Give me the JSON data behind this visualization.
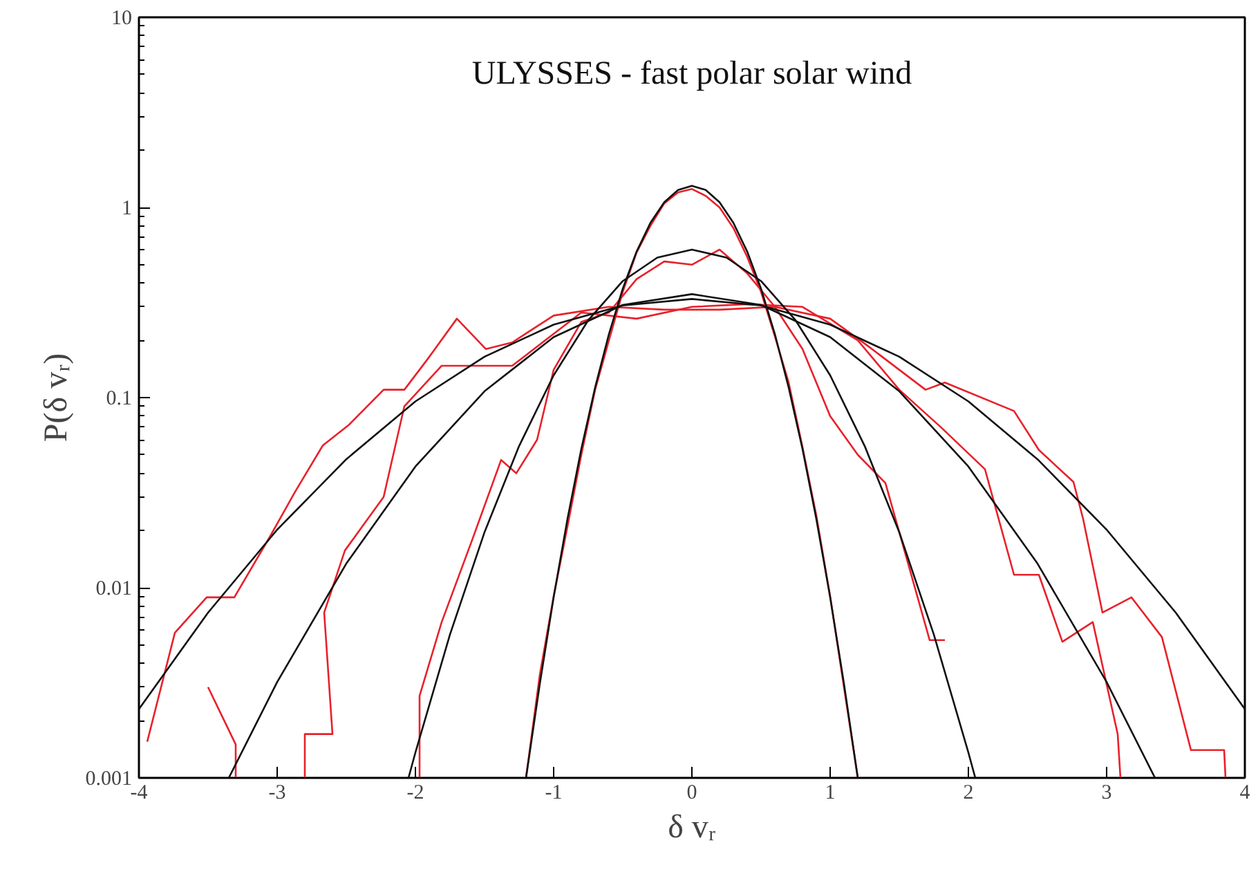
{
  "chart_data": {
    "type": "line",
    "title": "ULYSSES - fast polar solar wind",
    "xlabel": "δ vᵣ",
    "ylabel": "P(δ vᵣ)",
    "log": "y",
    "grid": false,
    "marker": "none",
    "line_style": "solid",
    "xlim": [
      -4,
      4
    ],
    "xticks": [
      -4,
      -3,
      -2,
      -1,
      0,
      1,
      2,
      3,
      4
    ],
    "ylim": [
      0.001,
      10
    ],
    "yticks": [
      {
        "value": 0.001,
        "label": "0.001"
      },
      {
        "value": 0.01,
        "label": "0.01"
      },
      {
        "value": 0.1,
        "label": "0.1"
      },
      {
        "value": 1,
        "label": "1"
      },
      {
        "value": 10,
        "label": "10"
      }
    ],
    "series": [
      {
        "color": "#e8212b",
        "x": [
          -1.2,
          -1.1,
          -1.0,
          -0.9,
          -0.8,
          -0.7,
          -0.6,
          -0.5,
          -0.4,
          -0.3,
          -0.2,
          -0.1,
          0,
          0.1,
          0.2,
          0.3,
          0.4,
          0.5,
          0.6,
          0.7,
          0.8,
          0.9,
          1.0,
          1.1,
          1.2
        ],
        "values": [
          0.001,
          0.0035,
          0.009,
          0.021,
          0.05,
          0.11,
          0.2,
          0.36,
          0.58,
          0.8,
          1.05,
          1.2,
          1.25,
          1.15,
          1.0,
          0.78,
          0.55,
          0.36,
          0.21,
          0.12,
          0.055,
          0.024,
          0.009,
          0.003,
          0.001
        ]
      },
      {
        "color": "#e8212b",
        "x": [
          -1.97,
          -1.97,
          -1.81,
          -1.59,
          -1.38,
          -1.27,
          -1.12,
          -1.0,
          -0.8,
          -0.6,
          -0.4,
          -0.2,
          0,
          0.2,
          0.4,
          0.6,
          0.8,
          1.0,
          1.2,
          1.4,
          1.72,
          1.83
        ],
        "values": [
          0.001,
          0.0027,
          0.0066,
          0.0178,
          0.047,
          0.04,
          0.06,
          0.14,
          0.25,
          0.28,
          0.42,
          0.52,
          0.5,
          0.6,
          0.45,
          0.3,
          0.18,
          0.08,
          0.05,
          0.0355,
          0.0053,
          0.0053
        ]
      },
      {
        "color": "#e8212b",
        "x": [
          -3.5,
          -3.3,
          -3.3,
          -3.0,
          -2.8,
          -2.8,
          -2.6,
          -2.66,
          -2.51,
          -2.23,
          -2.08,
          -1.81,
          -1.3,
          -0.8,
          -0.4,
          0,
          0.4,
          0.8,
          1.2,
          1.5,
          1.8,
          2.12,
          2.33,
          2.51,
          2.68,
          2.9,
          3.08,
          3.1
        ],
        "values": [
          0.003,
          0.0015,
          0.001,
          null,
          0.001,
          0.0017,
          0.0017,
          0.0074,
          0.0157,
          0.03,
          0.09,
          0.147,
          0.147,
          0.28,
          0.26,
          0.3,
          0.31,
          0.3,
          0.2,
          0.11,
          0.07,
          0.042,
          0.0117,
          0.0117,
          0.0052,
          0.0066,
          0.0017,
          0.001
        ]
      },
      {
        "color": "#e8212b",
        "x": [
          -3.94,
          -3.74,
          -3.51,
          -3.31,
          -3.05,
          -2.87,
          -2.67,
          -2.48,
          -2.23,
          -2.08,
          -1.91,
          -1.7,
          -1.49,
          -1.3,
          -1.0,
          -0.6,
          -0.2,
          0.2,
          0.6,
          1.0,
          1.26,
          1.69,
          1.83,
          2.33,
          2.51,
          2.76,
          2.83,
          2.97,
          3.18,
          3.4,
          3.61,
          3.85,
          3.86
        ],
        "values": [
          0.00155,
          0.0058,
          0.0089,
          0.0089,
          0.0187,
          0.032,
          0.056,
          0.072,
          0.11,
          0.11,
          0.16,
          0.26,
          0.18,
          0.195,
          0.27,
          0.3,
          0.29,
          0.29,
          0.3,
          0.26,
          0.19,
          0.11,
          0.12,
          0.085,
          0.053,
          0.036,
          0.023,
          0.0074,
          0.0089,
          0.0055,
          0.0014,
          0.0014,
          0.001
        ]
      },
      {
        "color": "#111111",
        "x": [
          -1.2,
          -1.1,
          -1.0,
          -0.9,
          -0.8,
          -0.7,
          -0.6,
          -0.5,
          -0.4,
          -0.3,
          -0.2,
          -0.1,
          0,
          0.1,
          0.2,
          0.3,
          0.4,
          0.5,
          0.6,
          0.7,
          0.8,
          0.9,
          1.0,
          1.1,
          1.2
        ],
        "values": [
          0.001,
          0.00313,
          0.00893,
          0.023,
          0.0537,
          0.113,
          0.216,
          0.374,
          0.586,
          0.83,
          1.065,
          1.236,
          1.3,
          1.236,
          1.065,
          0.83,
          0.586,
          0.374,
          0.216,
          0.113,
          0.0537,
          0.023,
          0.00893,
          0.00313,
          0.001
        ]
      },
      {
        "color": "#111111",
        "x": [
          -2.05,
          -2.0,
          -1.75,
          -1.5,
          -1.25,
          -1.0,
          -0.75,
          -0.5,
          -0.25,
          0,
          0.25,
          0.5,
          0.75,
          1.0,
          1.25,
          1.5,
          1.75,
          2.0,
          2.05
        ],
        "values": [
          0.001,
          0.00136,
          0.00568,
          0.0196,
          0.0556,
          0.131,
          0.255,
          0.41,
          0.545,
          0.6,
          0.545,
          0.41,
          0.255,
          0.131,
          0.0556,
          0.0196,
          0.00568,
          0.00136,
          0.001
        ]
      },
      {
        "color": "#111111",
        "x": [
          -3.35,
          -3.0,
          -2.5,
          -2.0,
          -1.5,
          -1.0,
          -0.5,
          0,
          0.5,
          1.0,
          1.5,
          2.0,
          2.5,
          3.0,
          3.35
        ],
        "values": [
          0.001,
          0.00319,
          0.0134,
          0.0434,
          0.108,
          0.208,
          0.307,
          0.35,
          0.307,
          0.208,
          0.108,
          0.0434,
          0.0134,
          0.00319,
          0.001
        ]
      },
      {
        "color": "#111111",
        "x": [
          -4,
          -3.5,
          -3.0,
          -2.5,
          -2.0,
          -1.5,
          -1.0,
          -0.5,
          0,
          0.5,
          1.0,
          1.5,
          2.0,
          2.5,
          3.0,
          3.5,
          4
        ],
        "values": [
          0.0023,
          0.0074,
          0.0202,
          0.0474,
          0.0955,
          0.164,
          0.242,
          0.305,
          0.33,
          0.305,
          0.242,
          0.164,
          0.0955,
          0.0474,
          0.0202,
          0.0074,
          0.0023
        ]
      }
    ]
  }
}
